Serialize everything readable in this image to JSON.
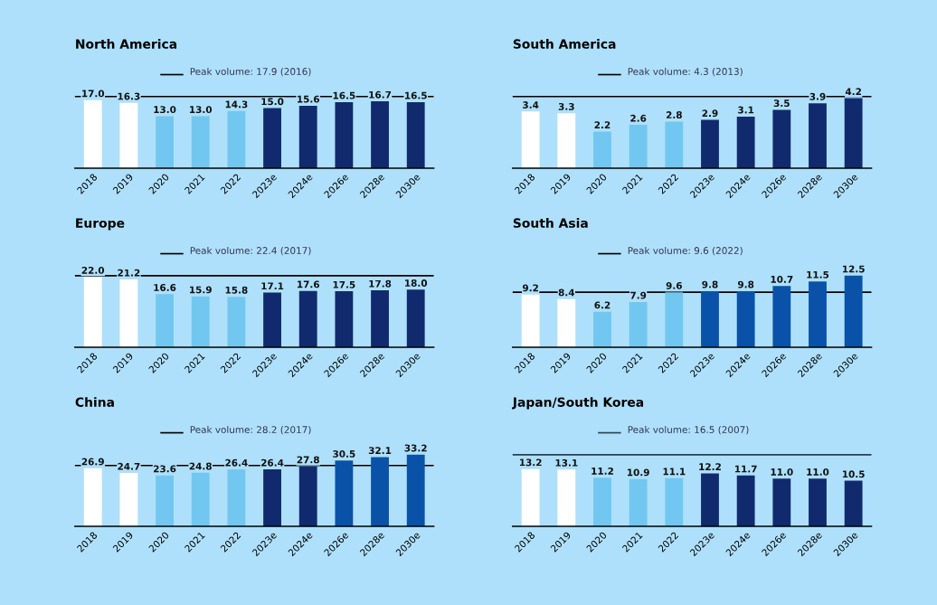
{
  "chart_data": [
    {
      "type": "bar",
      "title": "North America",
      "categories": [
        "2018",
        "2019",
        "2020",
        "2021",
        "2022",
        "2023e",
        "2024e",
        "2026e",
        "2028e",
        "2030e"
      ],
      "values": [
        17.0,
        16.3,
        13.0,
        13.0,
        14.3,
        15.0,
        15.6,
        16.5,
        16.7,
        16.5
      ],
      "value_labels": [
        "17.0",
        "16.3",
        "13.0",
        "13.0",
        "14.3",
        "15.0",
        "15.6",
        "16.5",
        "16.7",
        "16.5"
      ],
      "colors": [
        "#ffffff",
        "#ffffff",
        "#72c7f0",
        "#72c7f0",
        "#72c7f0",
        "#112a6e",
        "#112a6e",
        "#112a6e",
        "#112a6e",
        "#112a6e"
      ],
      "tick_labels": "x",
      "ref_lines": [
        {
          "axis": "y",
          "value": 17.9,
          "label": "Peak volume: 17.9 (2016)",
          "color": "#000000"
        }
      ]
    },
    {
      "type": "bar",
      "title": "South America",
      "categories": [
        "2018",
        "2019",
        "2020",
        "2021",
        "2022",
        "2023e",
        "2024e",
        "2026e",
        "2028e",
        "2030e"
      ],
      "values": [
        3.4,
        3.3,
        2.2,
        2.6,
        2.8,
        2.9,
        3.1,
        3.5,
        3.9,
        4.2
      ],
      "value_labels": [
        "3.4",
        "3.3",
        "2.2",
        "2.6",
        "2.8",
        "2.9",
        "3.1",
        "3.5",
        "3.9",
        "4.2"
      ],
      "colors": [
        "#ffffff",
        "#ffffff",
        "#72c7f0",
        "#72c7f0",
        "#72c7f0",
        "#112a6e",
        "#112a6e",
        "#112a6e",
        "#112a6e",
        "#112a6e"
      ],
      "tick_labels": "x",
      "ref_lines": [
        {
          "axis": "y",
          "value": 4.3,
          "label": "Peak volume: 4.3 (2013)",
          "color": "#000000"
        }
      ]
    },
    {
      "type": "bar",
      "title": "Europe",
      "categories": [
        "2018",
        "2019",
        "2020",
        "2021",
        "2022",
        "2023e",
        "2024e",
        "2026e",
        "2028e",
        "2030e"
      ],
      "values": [
        22.0,
        21.2,
        16.6,
        15.9,
        15.8,
        17.1,
        17.6,
        17.5,
        17.8,
        18.0
      ],
      "value_labels": [
        "22.0",
        "21.2",
        "16.6",
        "15.9",
        "15.8",
        "17.1",
        "17.6",
        "17.5",
        "17.8",
        "18.0"
      ],
      "colors": [
        "#ffffff",
        "#ffffff",
        "#72c7f0",
        "#72c7f0",
        "#72c7f0",
        "#112a6e",
        "#112a6e",
        "#112a6e",
        "#112a6e",
        "#112a6e"
      ],
      "tick_labels": "x",
      "ref_lines": [
        {
          "axis": "y",
          "value": 22.4,
          "label": "Peak volume: 22.4 (2017)",
          "color": "#000000"
        }
      ]
    },
    {
      "type": "bar",
      "title": "South Asia",
      "categories": [
        "2018",
        "2019",
        "2020",
        "2021",
        "2022",
        "2023e",
        "2024e",
        "2026e",
        "2028e",
        "2030e"
      ],
      "values": [
        9.2,
        8.4,
        6.2,
        7.9,
        9.6,
        9.8,
        9.8,
        10.7,
        11.5,
        12.5
      ],
      "value_labels": [
        "9.2",
        "8.4",
        "6.2",
        "7.9",
        "9.6",
        "9.8",
        "9.8",
        "10.7",
        "11.5",
        "12.5"
      ],
      "colors": [
        "#ffffff",
        "#ffffff",
        "#72c7f0",
        "#72c7f0",
        "#72c7f0",
        "#0a52a8",
        "#0a52a8",
        "#0a52a8",
        "#0a52a8",
        "#0a52a8"
      ],
      "tick_labels": "x",
      "ref_lines": [
        {
          "axis": "y",
          "value": 9.6,
          "label": "Peak volume: 9.6 (2022)",
          "color": "#000000"
        }
      ]
    },
    {
      "type": "bar",
      "title": "China",
      "categories": [
        "2018",
        "2019",
        "2020",
        "2021",
        "2022",
        "2023e",
        "2024e",
        "2026e",
        "2028e",
        "2030e"
      ],
      "values": [
        26.9,
        24.7,
        23.6,
        24.8,
        26.4,
        26.4,
        27.8,
        30.5,
        32.1,
        33.2
      ],
      "value_labels": [
        "26.9",
        "24.7",
        "23.6",
        "24.8",
        "26.4",
        "26.4",
        "27.8",
        "30.5",
        "32.1",
        "33.2"
      ],
      "colors": [
        "#ffffff",
        "#ffffff",
        "#72c7f0",
        "#72c7f0",
        "#72c7f0",
        "#112a6e",
        "#112a6e",
        "#0a52a8",
        "#0a52a8",
        "#0a52a8"
      ],
      "tick_labels": "x",
      "ref_lines": [
        {
          "axis": "y",
          "value": 28.2,
          "label": "Peak volume: 28.2 (2017)",
          "color": "#000000"
        }
      ]
    },
    {
      "type": "bar",
      "title": "Japan/South Korea",
      "categories": [
        "2018",
        "2019",
        "2020",
        "2021",
        "2022",
        "2023e",
        "2024e",
        "2026e",
        "2028e",
        "2030e"
      ],
      "values": [
        13.2,
        13.1,
        11.2,
        10.9,
        11.1,
        12.2,
        11.7,
        11.0,
        11.0,
        10.5
      ],
      "value_labels": [
        "13.2",
        "13.1",
        "11.2",
        "10.9",
        "11.1",
        "12.2",
        "11.7",
        "11.0",
        "11.0",
        "10.5"
      ],
      "colors": [
        "#ffffff",
        "#ffffff",
        "#72c7f0",
        "#72c7f0",
        "#72c7f0",
        "#112a6e",
        "#112a6e",
        "#112a6e",
        "#112a6e",
        "#112a6e"
      ],
      "tick_labels": "x",
      "ref_lines": [
        {
          "axis": "y",
          "value": 16.5,
          "label": "Peak volume: 16.5 (2007)",
          "color": "#2f3f4f"
        }
      ]
    }
  ]
}
